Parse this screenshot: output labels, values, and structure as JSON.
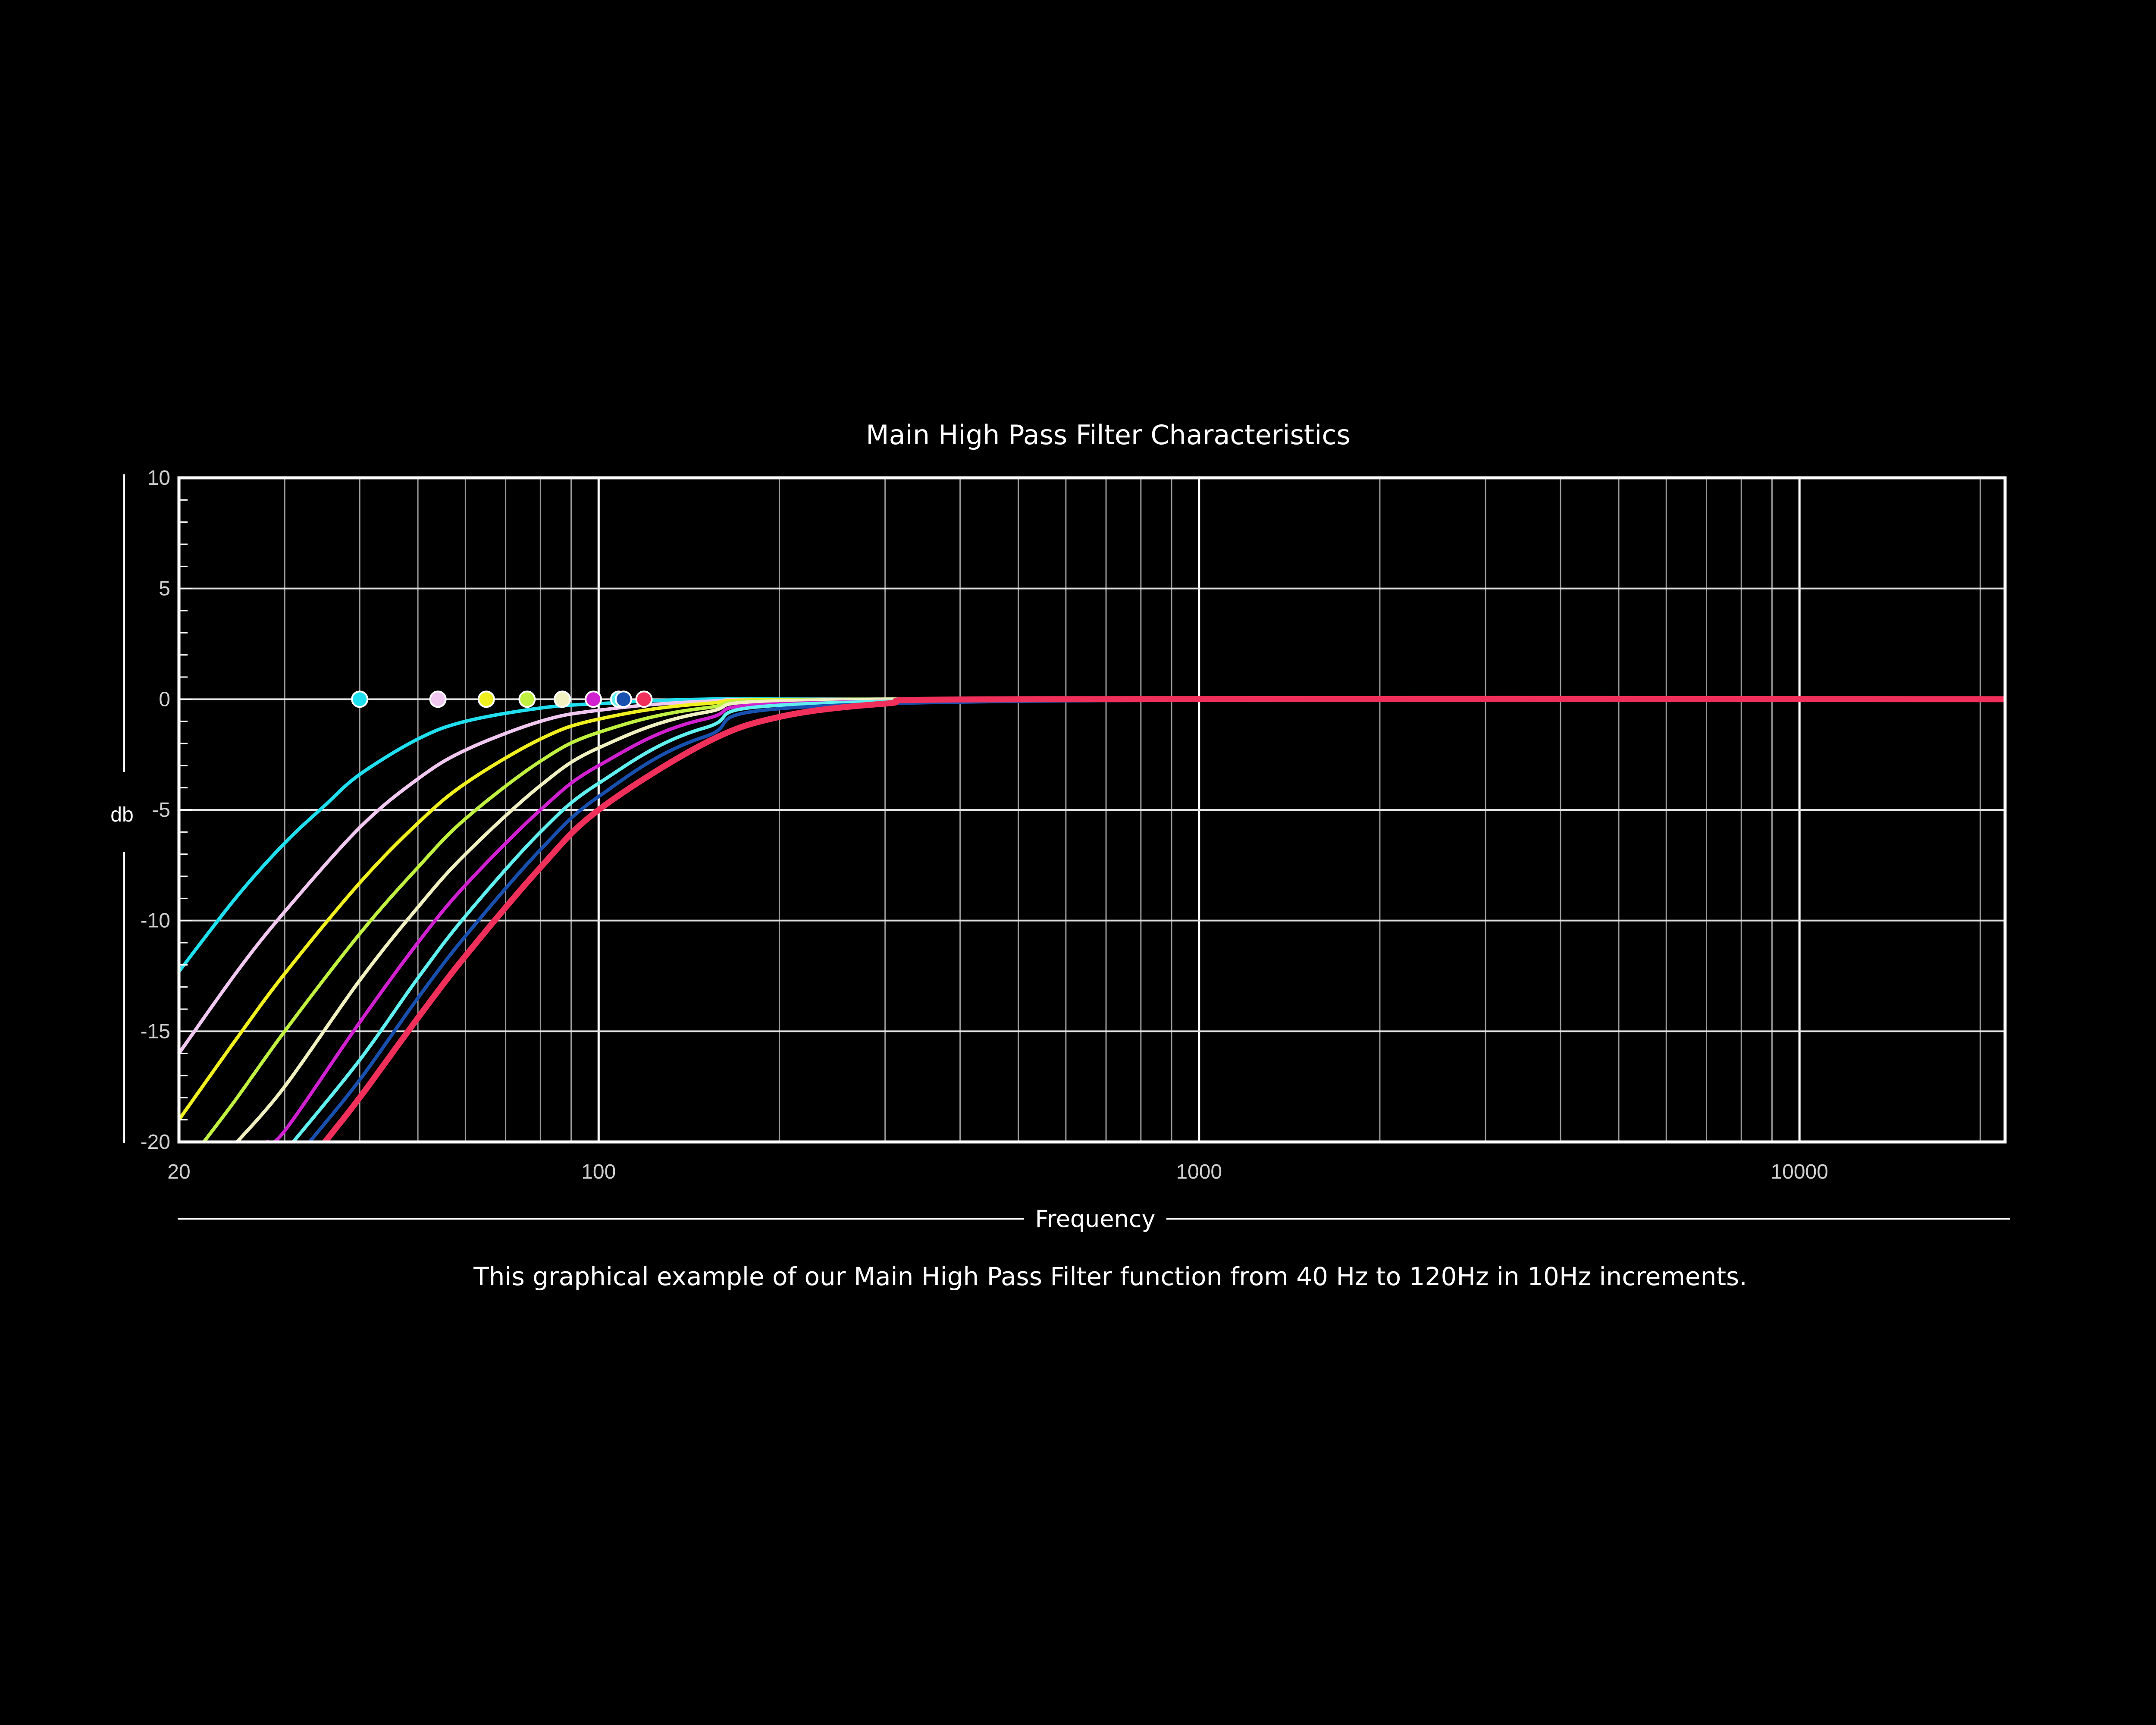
{
  "chart_data": {
    "type": "line",
    "title": "Main High Pass Filter Characteristics",
    "xlabel": "Frequency",
    "ylabel": "db",
    "caption": "This graphical example of our Main High Pass Filter  function from  40 Hz to 120Hz in 10Hz increments.",
    "xscale": "log",
    "xlim": [
      20,
      22000
    ],
    "ylim": [
      -20,
      10
    ],
    "x_ticks": [
      {
        "value": 20,
        "label": "20"
      },
      {
        "value": 100,
        "label": "100"
      },
      {
        "value": 1000,
        "label": "1000"
      },
      {
        "value": 10000,
        "label": "10000"
      }
    ],
    "y_ticks": [
      {
        "value": 10,
        "label": "10"
      },
      {
        "value": 5,
        "label": "5"
      },
      {
        "value": 0,
        "label": "0"
      },
      {
        "value": -5,
        "label": "-5"
      },
      {
        "value": -10,
        "label": "-10"
      },
      {
        "value": -15,
        "label": "-15"
      },
      {
        "value": -20,
        "label": "-20"
      }
    ],
    "grid": true,
    "legend": "none",
    "series": [
      {
        "cutoff_hz": 40,
        "color": "#20e0f0",
        "marker_x": 40,
        "points": [
          [
            20,
            -12.3
          ],
          [
            25,
            -8.9
          ],
          [
            30,
            -6.5
          ],
          [
            35,
            -4.8
          ],
          [
            40,
            -3.4
          ],
          [
            50,
            -1.8
          ],
          [
            60,
            -1.0
          ],
          [
            80,
            -0.4
          ],
          [
            100,
            -0.2
          ],
          [
            150,
            0
          ],
          [
            300,
            0
          ],
          [
            22000,
            0
          ]
        ]
      },
      {
        "cutoff_hz": 50,
        "color": "#f0c8f0",
        "marker_x": 54,
        "points": [
          [
            20,
            -16.0
          ],
          [
            25,
            -12.3
          ],
          [
            30,
            -9.6
          ],
          [
            40,
            -5.8
          ],
          [
            50,
            -3.6
          ],
          [
            60,
            -2.3
          ],
          [
            80,
            -1.0
          ],
          [
            100,
            -0.5
          ],
          [
            150,
            -0.1
          ],
          [
            300,
            0
          ],
          [
            22000,
            0
          ]
        ]
      },
      {
        "cutoff_hz": 60,
        "color": "#f0f020",
        "marker_x": 65,
        "points": [
          [
            20,
            -19.0
          ],
          [
            25,
            -15.3
          ],
          [
            30,
            -12.4
          ],
          [
            40,
            -8.3
          ],
          [
            50,
            -5.6
          ],
          [
            60,
            -3.8
          ],
          [
            80,
            -1.8
          ],
          [
            100,
            -0.9
          ],
          [
            150,
            -0.2
          ],
          [
            300,
            0
          ],
          [
            22000,
            0
          ]
        ]
      },
      {
        "cutoff_hz": 70,
        "color": "#c0f040",
        "marker_x": 76,
        "points": [
          [
            22,
            -20.0
          ],
          [
            25,
            -18.0
          ],
          [
            30,
            -15.0
          ],
          [
            40,
            -10.6
          ],
          [
            50,
            -7.6
          ],
          [
            60,
            -5.4
          ],
          [
            80,
            -2.8
          ],
          [
            100,
            -1.5
          ],
          [
            150,
            -0.4
          ],
          [
            300,
            0
          ],
          [
            22000,
            0
          ]
        ]
      },
      {
        "cutoff_hz": 80,
        "color": "#f0f0c0",
        "marker_x": 87,
        "points": [
          [
            25,
            -20.0
          ],
          [
            30,
            -17.5
          ],
          [
            40,
            -12.7
          ],
          [
            50,
            -9.4
          ],
          [
            60,
            -7.0
          ],
          [
            80,
            -3.9
          ],
          [
            100,
            -2.2
          ],
          [
            150,
            -0.6
          ],
          [
            300,
            0
          ],
          [
            22000,
            0
          ]
        ]
      },
      {
        "cutoff_hz": 90,
        "color": "#d020d0",
        "marker_x": 98,
        "points": [
          [
            28,
            -20.0
          ],
          [
            30,
            -19.5
          ],
          [
            40,
            -14.6
          ],
          [
            50,
            -11.0
          ],
          [
            60,
            -8.4
          ],
          [
            80,
            -5.0
          ],
          [
            100,
            -3.0
          ],
          [
            150,
            -0.9
          ],
          [
            300,
            -0.1
          ],
          [
            22000,
            0
          ]
        ]
      },
      {
        "cutoff_hz": 100,
        "color": "#60f0f0",
        "marker_x": 108,
        "points": [
          [
            31,
            -20.0
          ],
          [
            40,
            -16.3
          ],
          [
            50,
            -12.6
          ],
          [
            60,
            -9.8
          ],
          [
            80,
            -6.0
          ],
          [
            100,
            -3.8
          ],
          [
            150,
            -1.3
          ],
          [
            300,
            -0.1
          ],
          [
            22000,
            0
          ]
        ]
      },
      {
        "cutoff_hz": 110,
        "color": "#1850b0",
        "marker_x": 110,
        "points": [
          [
            33,
            -20.0
          ],
          [
            40,
            -17.2
          ],
          [
            50,
            -13.5
          ],
          [
            60,
            -10.7
          ],
          [
            80,
            -6.8
          ],
          [
            100,
            -4.4
          ],
          [
            150,
            -1.7
          ],
          [
            300,
            -0.2
          ],
          [
            22000,
            0
          ]
        ]
      },
      {
        "cutoff_hz": 120,
        "color": "#f0305a",
        "marker_x": 119,
        "points": [
          [
            35,
            -20.0
          ],
          [
            40,
            -18.0
          ],
          [
            50,
            -14.4
          ],
          [
            60,
            -11.6
          ],
          [
            80,
            -7.6
          ],
          [
            100,
            -5.0
          ],
          [
            150,
            -2.0
          ],
          [
            200,
            -0.8
          ],
          [
            300,
            -0.2
          ],
          [
            500,
            0
          ],
          [
            22000,
            0
          ]
        ]
      }
    ]
  }
}
